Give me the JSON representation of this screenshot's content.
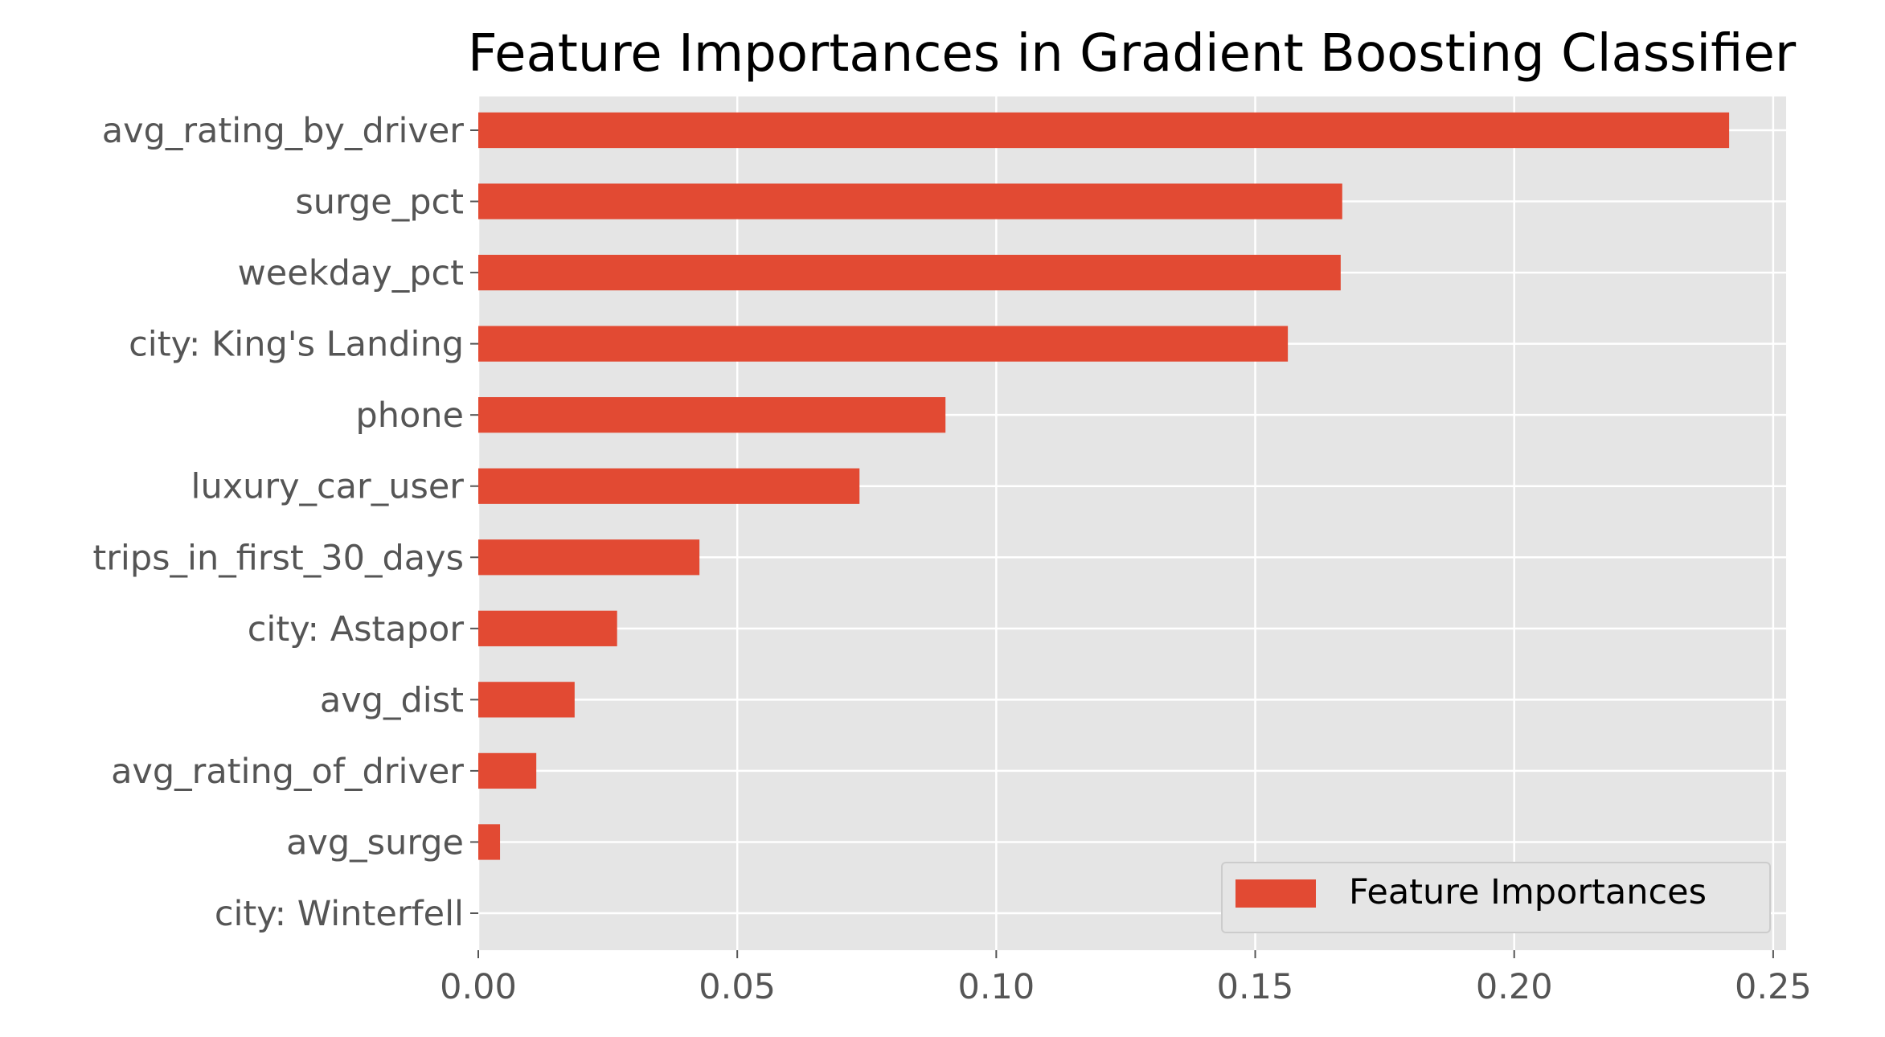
{
  "chart_data": {
    "type": "bar",
    "orientation": "horizontal",
    "title": "Feature Importances in Gradient Boosting Classifier",
    "xlabel": "",
    "ylabel": "",
    "categories": [
      "avg_rating_by_driver",
      "surge_pct",
      "weekday_pct",
      "city: King's Landing",
      "phone",
      "luxury_car_user",
      "trips_in_first_30_days",
      "city: Astapor",
      "avg_dist",
      "avg_rating_of_driver",
      "avg_surge",
      "city: Winterfell"
    ],
    "series": [
      {
        "name": "Feature Importances",
        "values": [
          0.2415,
          0.1668,
          0.1665,
          0.1563,
          0.0902,
          0.0736,
          0.0427,
          0.0268,
          0.0186,
          0.0112,
          0.0042,
          0.0
        ]
      }
    ],
    "xlim": [
      0,
      0.2525
    ],
    "xticks": [
      0.0,
      0.05,
      0.1,
      0.15,
      0.2,
      0.25
    ],
    "xtick_labels": [
      "0.00",
      "0.05",
      "0.10",
      "0.15",
      "0.20",
      "0.25"
    ],
    "grid": true,
    "legend_position": "lower-right",
    "colors": {
      "bar": "#E24A33",
      "plot_background": "#E5E5E5",
      "grid": "#FFFFFF",
      "tick_text": "#555555",
      "title_text": "#000000",
      "legend_background": "#E5E5E5",
      "legend_border": "#CCCCCC"
    }
  }
}
